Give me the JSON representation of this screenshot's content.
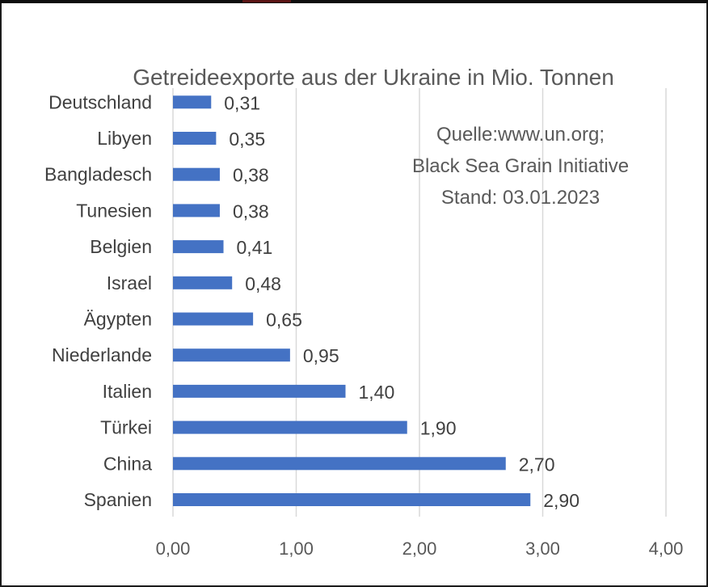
{
  "chart_data": {
    "type": "bar",
    "orientation": "horizontal",
    "title": "Getreideexporte aus der Ukraine in Mio. Tonnen",
    "categories": [
      "Spanien",
      "China",
      "Türkei",
      "Italien",
      "Niederlande",
      "Ägypten",
      "Israel",
      "Belgien",
      "Tunesien",
      "Bangladesch",
      "Libyen",
      "Deutschland"
    ],
    "values": [
      2.9,
      2.7,
      1.9,
      1.4,
      0.95,
      0.65,
      0.48,
      0.41,
      0.38,
      0.38,
      0.35,
      0.31
    ],
    "value_labels": [
      "2,90",
      "2,70",
      "1,90",
      "1,40",
      "0,95",
      "0,65",
      "0,48",
      "0,41",
      "0,38",
      "0,38",
      "0,35",
      "0,31"
    ],
    "xlim": [
      0,
      4
    ],
    "x_ticks": [
      "0,00",
      "1,00",
      "2,00",
      "3,00",
      "4,00"
    ],
    "grid": "vertical",
    "bar_color": "#4472C4",
    "annotation": [
      "Quelle:www.un.org;",
      "Black Sea Grain Initiative",
      "Stand: 03.01.2023"
    ]
  }
}
